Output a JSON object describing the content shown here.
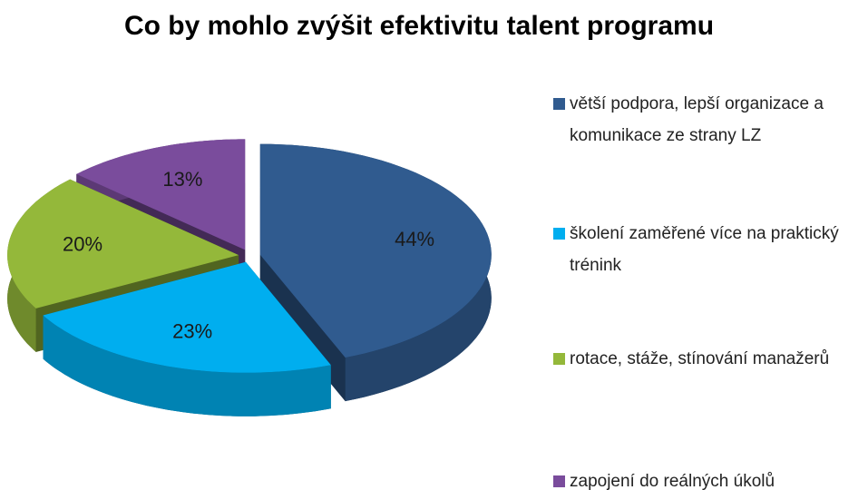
{
  "chart_data": {
    "type": "pie",
    "title": "Co by mohlo zvýšit efektivitu talent programu",
    "categories": [
      "větší podpora, lepší organizace a komunikace ze strany LZ",
      "školení zaměřené více na praktický trénink",
      "rotace, stáže, stínování manažerů",
      "zapojení do reálných úkolů"
    ],
    "values": [
      44,
      23,
      20,
      13
    ],
    "value_labels": [
      "44%",
      "23%",
      "20%",
      "13%"
    ],
    "colors": [
      "#305b8f",
      "#00aeef",
      "#94b83a",
      "#7a4c9c"
    ],
    "legend": "right"
  }
}
